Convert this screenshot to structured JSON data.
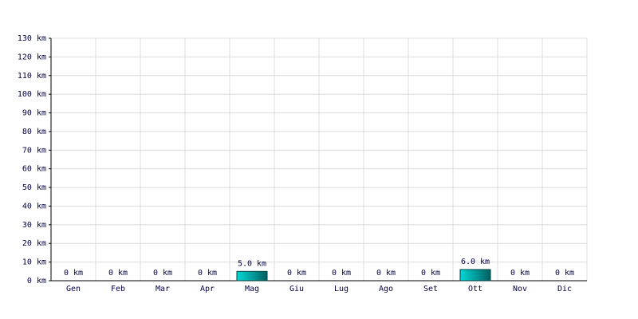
{
  "chart_data": {
    "type": "bar",
    "categories": [
      "Gen",
      "Feb",
      "Mar",
      "Apr",
      "Mag",
      "Giu",
      "Lug",
      "Ago",
      "Set",
      "Ott",
      "Nov",
      "Dic"
    ],
    "values": [
      0,
      0,
      0,
      0,
      5,
      0,
      0,
      0,
      0,
      6,
      0,
      0
    ],
    "value_labels": [
      "0 km",
      "0 km",
      "0 km",
      "0 km",
      "5.0 km",
      "0 km",
      "0 km",
      "0 km",
      "0 km",
      "6.0 km",
      "0 km",
      "0 km"
    ],
    "color": "#00d8d8",
    "ylim": [
      0,
      130
    ],
    "yticks": [
      {
        "value": 0,
        "label": "0 km"
      },
      {
        "value": 10,
        "label": "10 km"
      },
      {
        "value": 20,
        "label": "20 km"
      },
      {
        "value": 30,
        "label": "30 km"
      },
      {
        "value": 40,
        "label": "40 km"
      },
      {
        "value": 50,
        "label": "50 km"
      },
      {
        "value": 60,
        "label": "60 km"
      },
      {
        "value": 70,
        "label": "70 km"
      },
      {
        "value": 80,
        "label": "80 km"
      },
      {
        "value": 90,
        "label": "90 km"
      },
      {
        "value": 100,
        "label": "100 km"
      },
      {
        "value": 110,
        "label": "110 km"
      },
      {
        "value": 120,
        "label": "120 km"
      },
      {
        "value": 130,
        "label": "130 km"
      }
    ],
    "grid": true
  }
}
